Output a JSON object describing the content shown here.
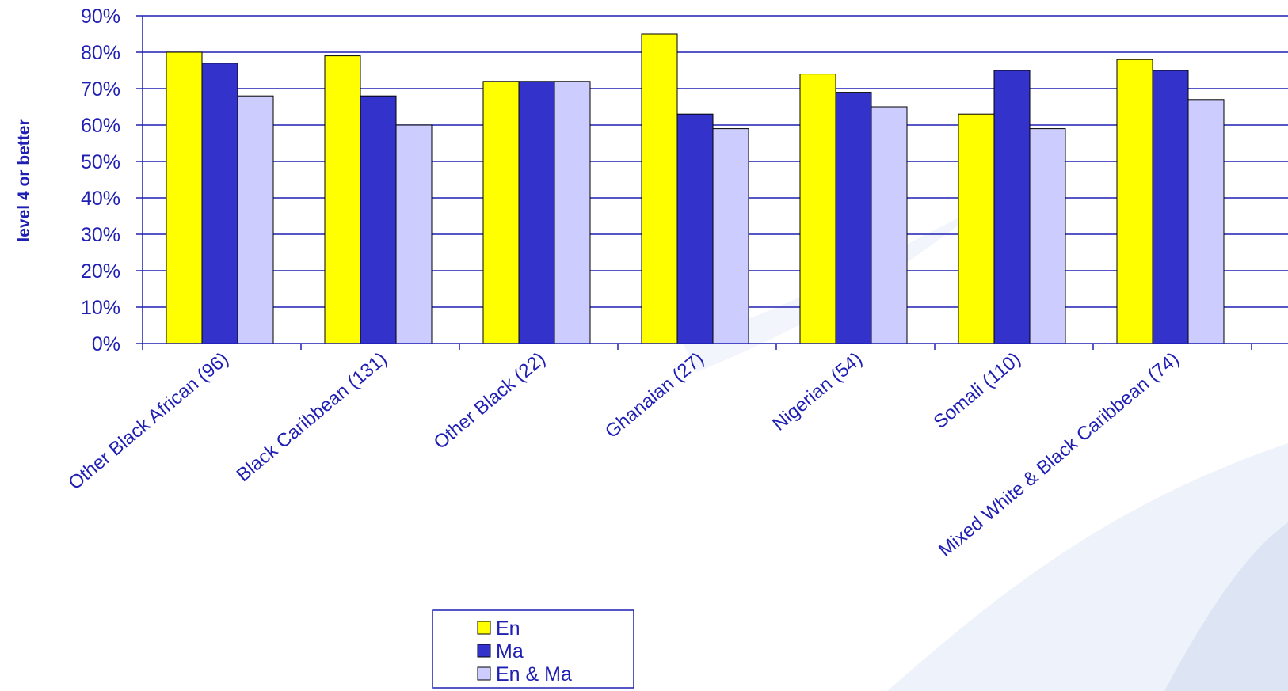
{
  "chart_data": {
    "type": "bar",
    "title": "",
    "xlabel": "",
    "ylabel": "level 4 or better",
    "ylim": [
      0,
      90
    ],
    "yticks": [
      "0%",
      "10%",
      "20%",
      "30%",
      "40%",
      "50%",
      "60%",
      "70%",
      "80%",
      "90%"
    ],
    "categories": [
      "Other Black African (96)",
      "Black Caribbean (131)",
      "Other Black (22)",
      "Ghanaian (27)",
      "Nigerian (54)",
      "Somali (110)",
      "Mixed White & Black Caribbean (74)"
    ],
    "series": [
      {
        "name": "En",
        "color": "#ffff00",
        "values": [
          80,
          79,
          72,
          85,
          74,
          63,
          78
        ]
      },
      {
        "name": "Ma",
        "color": "#3333cc",
        "values": [
          77,
          68,
          72,
          63,
          69,
          75,
          75
        ]
      },
      {
        "name": "En & Ma",
        "color": "#ccccff",
        "values": [
          68,
          60,
          72,
          59,
          65,
          59,
          67
        ]
      }
    ],
    "grid": true,
    "legend_position": "bottom-center"
  },
  "colors": {
    "axis": "#1f1fb3",
    "gridline": "#1f1fb3",
    "bar_border": "#000000",
    "background_swoosh": "#e6ebf6"
  }
}
